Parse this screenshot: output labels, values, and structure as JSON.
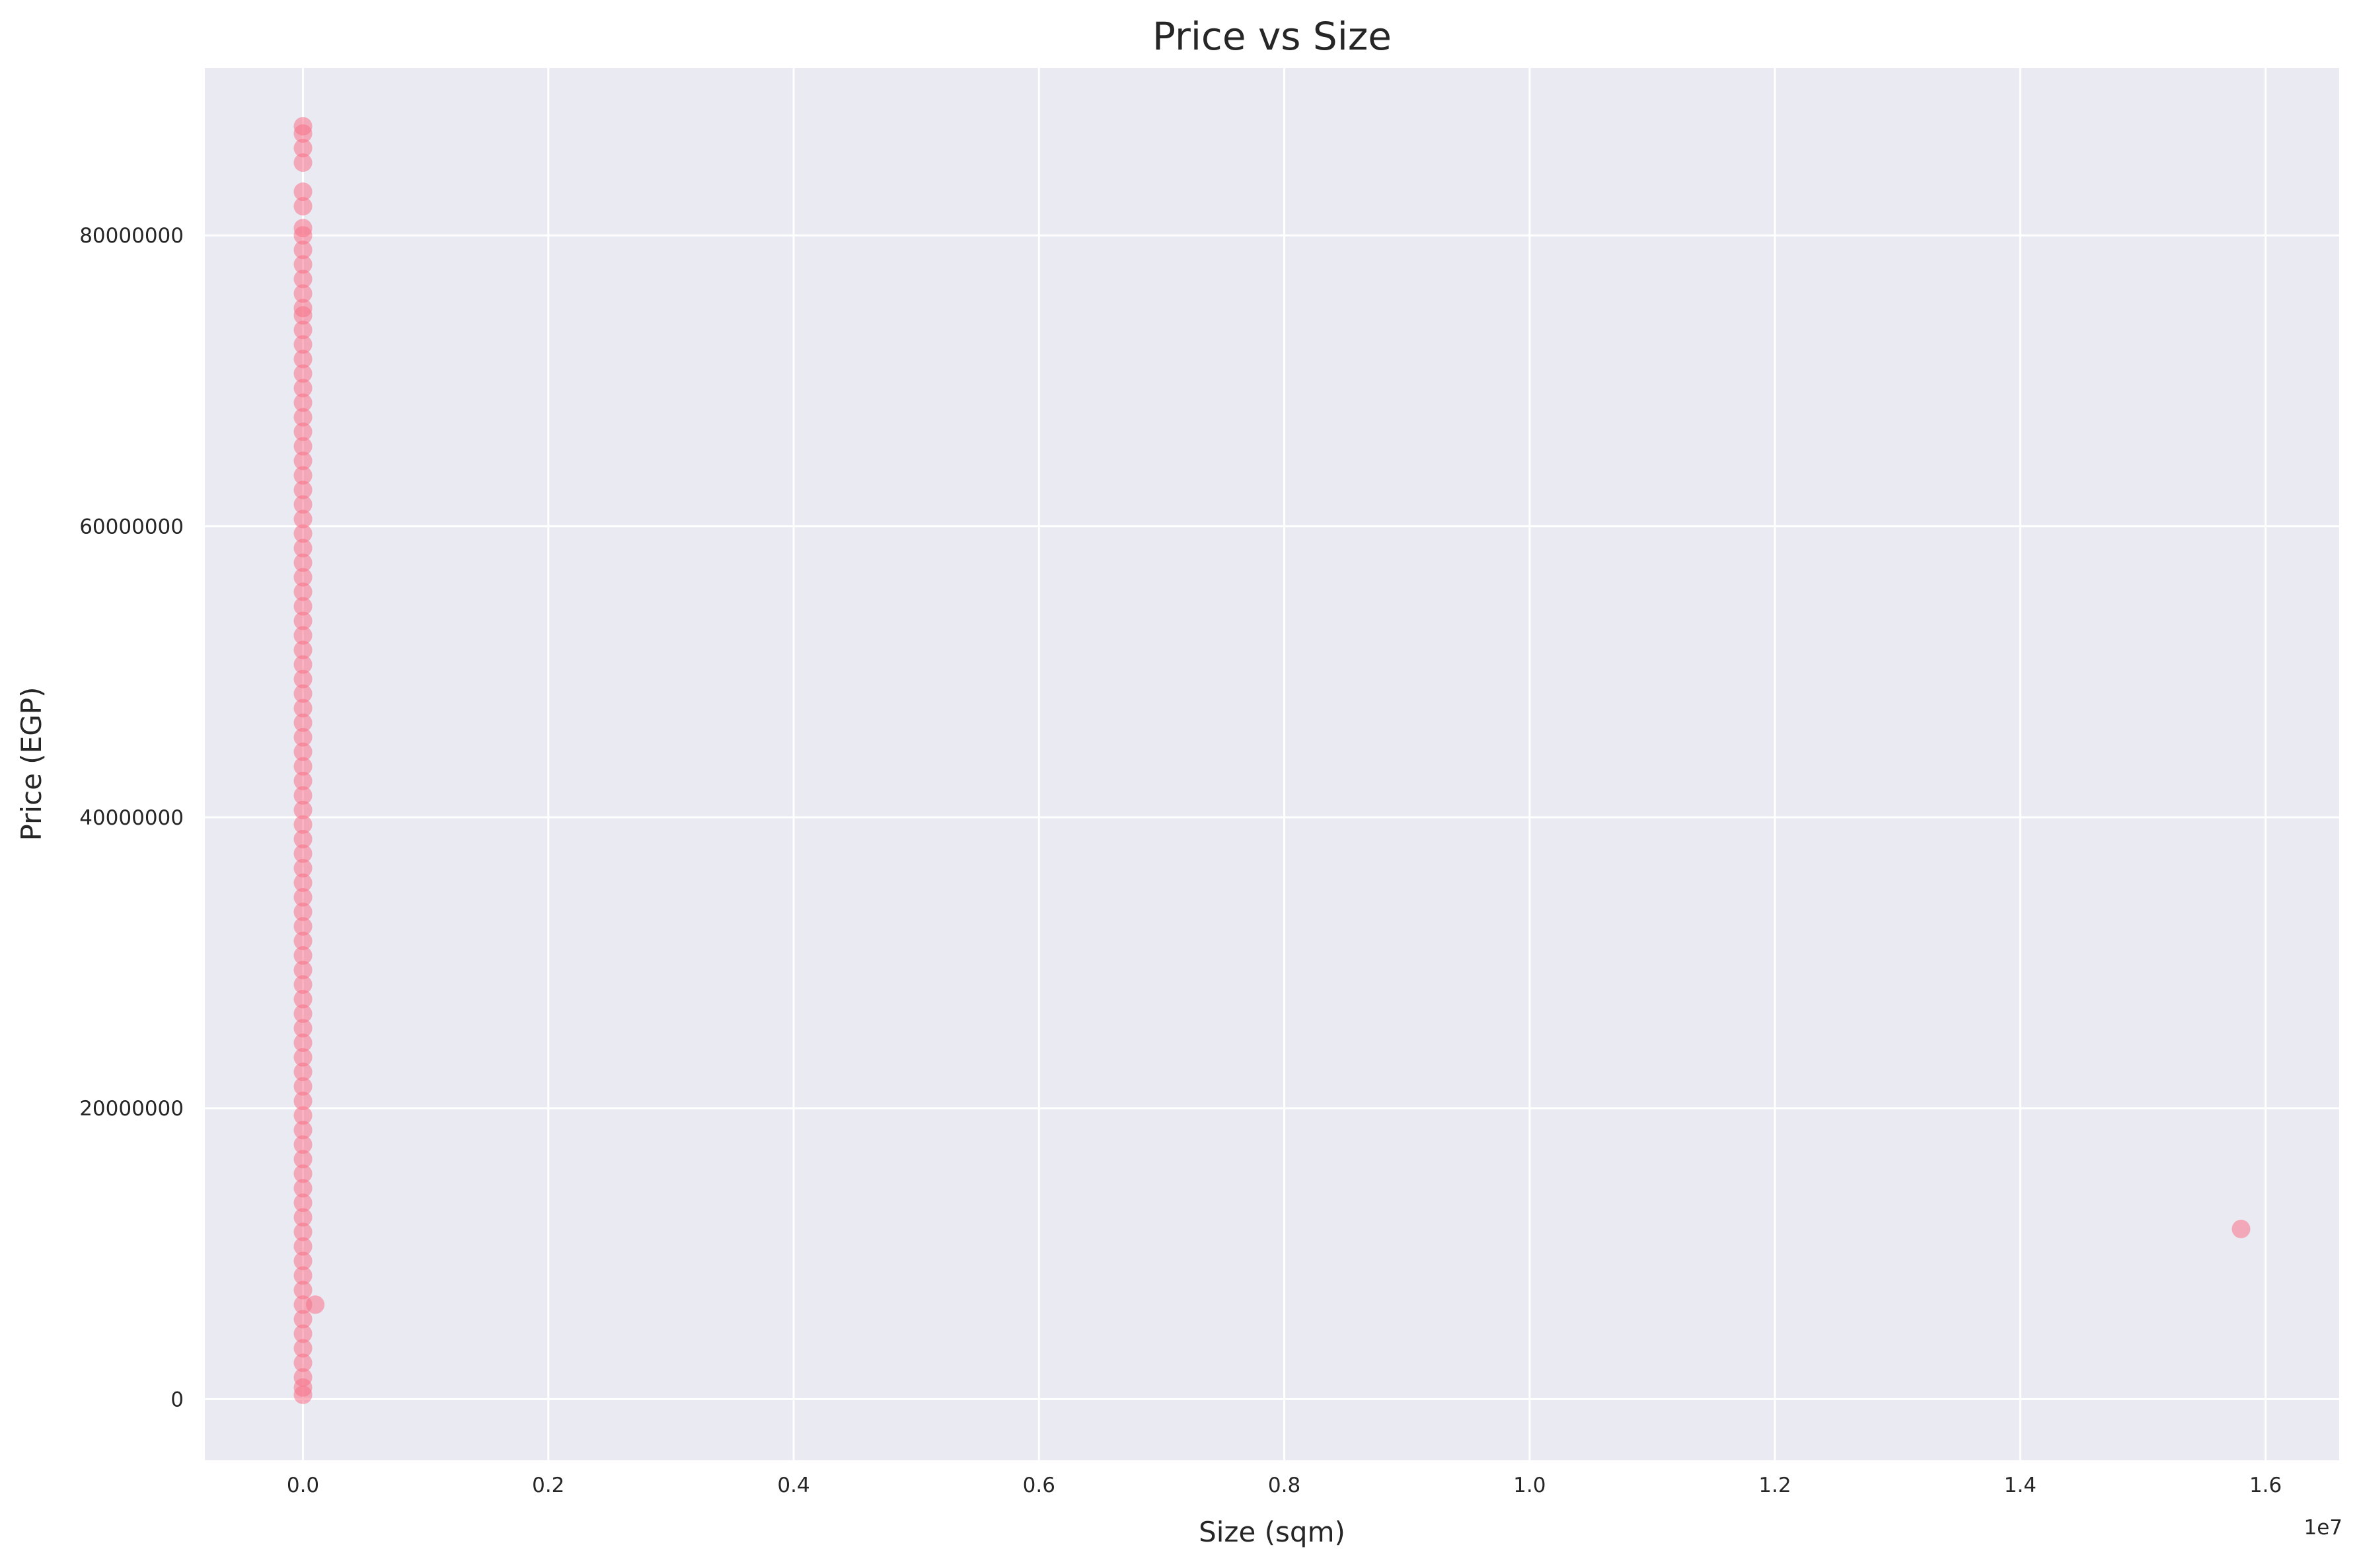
{
  "chart_data": {
    "type": "scatter",
    "title": "Price vs Size",
    "xlabel": "Size (sqm)",
    "ylabel": "Price (EGP)",
    "x_offset_label": "1e7",
    "xlim": [
      -800000,
      16600000
    ],
    "ylim": [
      -4200000,
      91500000
    ],
    "x_ticks": [
      0,
      2000000,
      4000000,
      6000000,
      8000000,
      10000000,
      12000000,
      14000000,
      16000000
    ],
    "x_tick_labels": [
      "0.0",
      "0.2",
      "0.4",
      "0.6",
      "0.8",
      "1.0",
      "1.2",
      "1.4",
      "1.6"
    ],
    "y_ticks": [
      0,
      20000000,
      40000000,
      60000000,
      80000000
    ],
    "y_tick_labels": [
      "0",
      "20000000",
      "40000000",
      "60000000",
      "80000000"
    ],
    "grid": true,
    "background_color": "#eaeaf2",
    "grid_color": "#ffffff",
    "point_color": "#f77189",
    "series": [
      {
        "points": [
          [
            0,
            300000
          ],
          [
            0,
            800000
          ],
          [
            0,
            1500000
          ],
          [
            0,
            2500000
          ],
          [
            0,
            3500000
          ],
          [
            0,
            4500000
          ],
          [
            0,
            5500000
          ],
          [
            0,
            6500000
          ],
          [
            0,
            7500000
          ],
          [
            0,
            8500000
          ],
          [
            0,
            9500000
          ],
          [
            0,
            10500000
          ],
          [
            0,
            11500000
          ],
          [
            0,
            12500000
          ],
          [
            0,
            13500000
          ],
          [
            0,
            14500000
          ],
          [
            0,
            15500000
          ],
          [
            0,
            16500000
          ],
          [
            0,
            17500000
          ],
          [
            0,
            18500000
          ],
          [
            0,
            19500000
          ],
          [
            0,
            20500000
          ],
          [
            0,
            21500000
          ],
          [
            0,
            22500000
          ],
          [
            0,
            23500000
          ],
          [
            0,
            24500000
          ],
          [
            0,
            25500000
          ],
          [
            0,
            26500000
          ],
          [
            0,
            27500000
          ],
          [
            0,
            28500000
          ],
          [
            0,
            29500000
          ],
          [
            0,
            30500000
          ],
          [
            0,
            31500000
          ],
          [
            0,
            32500000
          ],
          [
            0,
            33500000
          ],
          [
            0,
            34500000
          ],
          [
            0,
            35500000
          ],
          [
            0,
            36500000
          ],
          [
            0,
            37500000
          ],
          [
            0,
            38500000
          ],
          [
            0,
            39500000
          ],
          [
            0,
            40500000
          ],
          [
            0,
            41500000
          ],
          [
            0,
            42500000
          ],
          [
            0,
            43500000
          ],
          [
            0,
            44500000
          ],
          [
            0,
            45500000
          ],
          [
            0,
            46500000
          ],
          [
            0,
            47500000
          ],
          [
            0,
            48500000
          ],
          [
            0,
            49500000
          ],
          [
            0,
            50500000
          ],
          [
            0,
            51500000
          ],
          [
            0,
            52500000
          ],
          [
            0,
            53500000
          ],
          [
            0,
            54500000
          ],
          [
            0,
            55500000
          ],
          [
            0,
            56500000
          ],
          [
            0,
            57500000
          ],
          [
            0,
            58500000
          ],
          [
            0,
            59500000
          ],
          [
            0,
            60500000
          ],
          [
            0,
            61500000
          ],
          [
            0,
            62500000
          ],
          [
            0,
            63500000
          ],
          [
            0,
            64500000
          ],
          [
            0,
            65500000
          ],
          [
            0,
            66500000
          ],
          [
            0,
            67500000
          ],
          [
            0,
            68500000
          ],
          [
            0,
            69500000
          ],
          [
            0,
            70500000
          ],
          [
            0,
            71500000
          ],
          [
            0,
            72500000
          ],
          [
            0,
            73500000
          ],
          [
            0,
            74500000
          ],
          [
            0,
            75000000
          ],
          [
            0,
            76000000
          ],
          [
            0,
            77000000
          ],
          [
            0,
            78000000
          ],
          [
            0,
            79000000
          ],
          [
            0,
            80000000
          ],
          [
            0,
            80500000
          ],
          [
            0,
            82000000
          ],
          [
            0,
            83000000
          ],
          [
            0,
            85000000
          ],
          [
            0,
            86000000
          ],
          [
            0,
            87000000
          ],
          [
            0,
            87500000
          ],
          [
            100000,
            6500000
          ],
          [
            15800000,
            11700000
          ]
        ]
      }
    ]
  }
}
